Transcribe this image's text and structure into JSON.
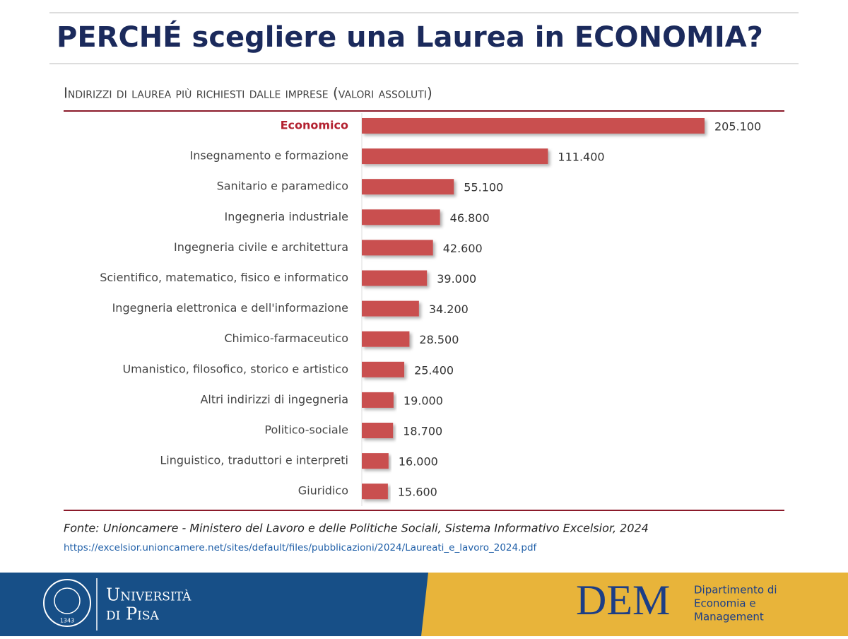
{
  "header": {
    "title": "PERCHÉ scegliere una Laurea in ECONOMIA?"
  },
  "chart_data": {
    "type": "bar",
    "orientation": "horizontal",
    "title": "Indirizzi di laurea più richiesti dalle imprese (valori assoluti)",
    "categories": [
      "Economico",
      "Insegnamento e formazione",
      "Sanitario e paramedico",
      "Ingegneria industriale",
      "Ingegneria civile e architettura",
      "Scientifico, matematico, fisico e informatico",
      "Ingegneria elettronica e dell'informazione",
      "Chimico-farmaceutico",
      "Umanistico, filosofico, storico e artistico",
      "Altri indirizzi di ingegneria",
      "Politico-sociale",
      "Linguistico, traduttori e interpreti",
      "Giuridico"
    ],
    "values": [
      205100,
      111400,
      55100,
      46800,
      42600,
      39000,
      34200,
      28500,
      25400,
      19000,
      18700,
      16000,
      15600
    ],
    "value_labels": [
      "205.100",
      "111.400",
      "55.100",
      "46.800",
      "42.600",
      "39.000",
      "34.200",
      "28.500",
      "25.400",
      "19.000",
      "18.700",
      "16.000",
      "15.600"
    ],
    "color": "#c9504f",
    "highlight": "Economico",
    "highlight_color": "#b3202f"
  },
  "source": {
    "text": "Fonte: Unioncamere - Ministero del Lavoro e delle Politiche Sociali, Sistema Informativo Excelsior, 2024",
    "url": "https://excelsior.unioncamere.net/sites/default/files/pubblicazioni/2024/Laureati_e_lavoro_2024.pdf"
  },
  "footer": {
    "university": [
      "Università",
      "di Pisa"
    ],
    "seal_year": "1343",
    "dem": "DEM",
    "department": [
      "Dipartimento di",
      "Economia e",
      "Management"
    ]
  }
}
